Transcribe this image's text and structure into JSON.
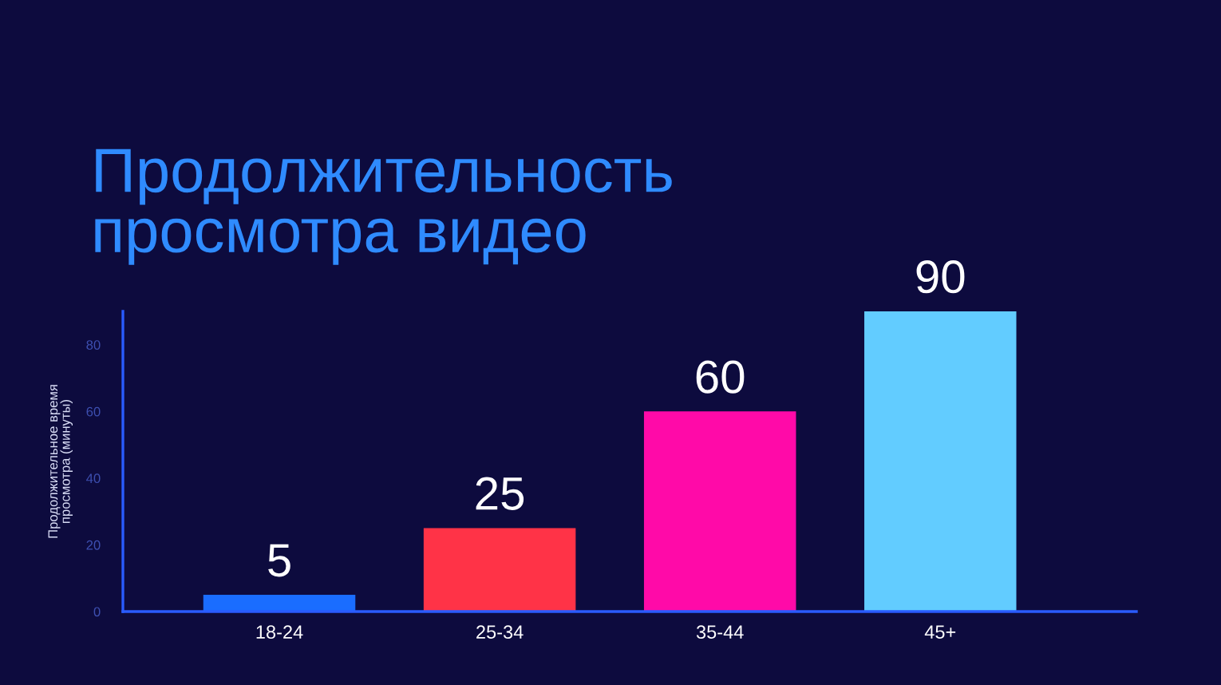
{
  "chart_data": {
    "type": "bar",
    "title": "Продолжительность\nпросмотра видео",
    "ylabel": "Продолжительное время\nпросмотра (минуты)",
    "categories": [
      "18-24",
      "25-34",
      "35-44",
      "45+"
    ],
    "values": [
      5,
      25,
      60,
      90
    ],
    "colors": [
      "#1a6dff",
      "#ff3347",
      "#ff0aa8",
      "#62ccff"
    ],
    "ylim": [
      0,
      90
    ],
    "yticks": [
      0,
      20,
      40,
      60,
      80
    ],
    "data_labels": true,
    "grid": false
  }
}
